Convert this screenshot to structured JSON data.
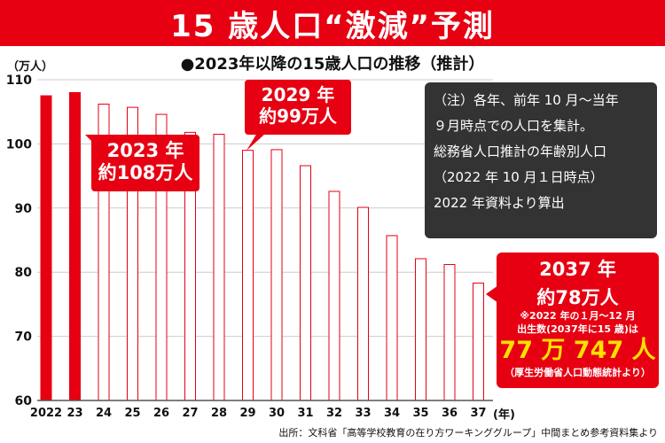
{
  "header": {
    "title": "15 歳人口“激減”予測"
  },
  "chart_data": {
    "type": "bar",
    "title": "●2023年以降の15歳人口の推移（推計）",
    "ylabel": "（万人）",
    "xlabel": "(年)",
    "ylim": [
      60,
      110
    ],
    "yticks": [
      60,
      70,
      80,
      90,
      100,
      110
    ],
    "categories": [
      "2022",
      "23",
      "24",
      "25",
      "26",
      "27",
      "28",
      "29",
      "30",
      "31",
      "32",
      "33",
      "34",
      "35",
      "36",
      "37"
    ],
    "values": [
      107.5,
      108,
      106.2,
      105.7,
      104.6,
      101.8,
      101.5,
      99,
      99.1,
      96.6,
      92.6,
      90.1,
      85.7,
      82.1,
      81.2,
      78.3
    ],
    "highlighted": [
      "2022",
      "23"
    ],
    "colors": {
      "highlight": "#e60012",
      "outline": "#e60012",
      "axis": "#555555",
      "grid": "#cccccc"
    }
  },
  "callouts": {
    "c2023": {
      "line1": "2023 年",
      "line2": "約108万人"
    },
    "c2029": {
      "line1": "2029 年",
      "line2": "約99万人"
    }
  },
  "note": {
    "lines": [
      "（注）各年、前年 10 月～当年",
      "９月時点での人口を集計。",
      "総務省人口推計の年齢別人口",
      "（2022 年 10 月１日時点）",
      "2022 年資料より算出"
    ]
  },
  "box2037": {
    "title1": "2037 年",
    "title2": "約78万人",
    "note1": "※2022 年の１月～12 月",
    "note2": "出生数(2037年に15 歳)は",
    "big": "77 万 747 人",
    "note3": "（厚生労働省人口動態統計より）"
  },
  "source": "出所：文科省「高等学校教育の在り方ワーキンググループ」中間まとめ参考資料集より"
}
